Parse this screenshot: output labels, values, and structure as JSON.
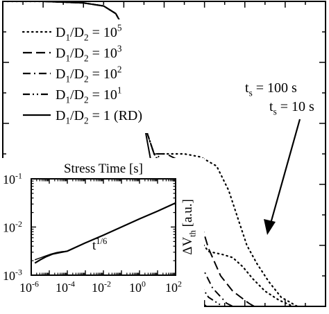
{
  "chart_data": [
    {
      "type": "line",
      "title": "",
      "xlabel": "",
      "ylabel": "",
      "xscale": "log",
      "yscale": "linear",
      "xlim": [
        -2,
        6
      ],
      "ylim": [
        0,
        1
      ],
      "grid": false,
      "legend": {
        "placement": "top-left",
        "entries": [
          {
            "ratio": "10",
            "exp": "5",
            "style": "dotted"
          },
          {
            "ratio": "10",
            "exp": "3",
            "style": "dashed"
          },
          {
            "ratio": "10",
            "exp": "2",
            "style": "dashdot"
          },
          {
            "ratio": "10",
            "exp": "1",
            "style": "dashdotdot"
          },
          {
            "ratio": "1 (RD)",
            "exp": "",
            "style": "solid"
          }
        ]
      },
      "series": [
        {
          "style": "solid",
          "x": [
            -2.0,
            -1.0,
            0.0,
            0.5,
            0.8,
            1.05,
            1.25,
            1.5,
            1.75,
            2.0,
            2.3,
            2.6,
            2.85,
            3.05,
            3.2,
            3.4
          ],
          "y": [
            1.0,
            1.0,
            0.995,
            0.985,
            0.96,
            0.9,
            0.8,
            0.6,
            0.42,
            0.29,
            0.18,
            0.08,
            0.02,
            0.0,
            -0.01,
            -0.02
          ]
        },
        {
          "style": "dashdotdot",
          "x": [
            -2.0,
            -1.0,
            0.0,
            0.5,
            0.8,
            1.05,
            1.25,
            1.5,
            1.75,
            1.9,
            2.05,
            2.3,
            2.55,
            2.8,
            3.1,
            3.45,
            3.8
          ],
          "y": [
            1.0,
            1.0,
            0.995,
            0.985,
            0.96,
            0.9,
            0.8,
            0.6,
            0.5,
            0.47,
            0.42,
            0.3,
            0.18,
            0.09,
            0.03,
            0.0,
            -0.02
          ]
        },
        {
          "style": "dashdot",
          "x": [
            -2.0,
            -1.0,
            0.0,
            0.5,
            0.8,
            1.05,
            1.25,
            1.5,
            1.75,
            2.0,
            2.2,
            2.4,
            2.65,
            2.9,
            3.2,
            3.55,
            4.0
          ],
          "y": [
            1.0,
            1.0,
            0.995,
            0.985,
            0.96,
            0.9,
            0.8,
            0.6,
            0.5,
            0.48,
            0.44,
            0.36,
            0.24,
            0.14,
            0.06,
            0.01,
            -0.02
          ]
        },
        {
          "style": "dashed",
          "x": [
            -2.0,
            -1.0,
            0.0,
            0.5,
            0.8,
            1.05,
            1.25,
            1.5,
            1.75,
            2.05,
            2.35,
            2.6,
            2.85,
            3.1,
            3.4,
            3.7,
            4.1,
            4.5
          ],
          "y": [
            1.0,
            1.0,
            0.995,
            0.985,
            0.96,
            0.9,
            0.8,
            0.6,
            0.5,
            0.5,
            0.48,
            0.42,
            0.3,
            0.19,
            0.1,
            0.05,
            0.01,
            -0.02
          ]
        },
        {
          "style": "dotted",
          "x": [
            -2.0,
            -1.0,
            0.0,
            0.5,
            0.8,
            1.05,
            1.25,
            1.5,
            1.75,
            2.1,
            2.5,
            2.9,
            3.3,
            3.6,
            3.85,
            4.05,
            4.3,
            4.6,
            4.9,
            5.3
          ],
          "y": [
            1.0,
            1.0,
            0.995,
            0.985,
            0.96,
            0.9,
            0.8,
            0.6,
            0.5,
            0.5,
            0.5,
            0.49,
            0.46,
            0.38,
            0.28,
            0.2,
            0.14,
            0.08,
            0.03,
            0.0
          ]
        },
        {
          "style": "dotted",
          "x": [
            1.75,
            2.2,
            2.7,
            3.1,
            3.45,
            3.7,
            3.95,
            4.2,
            4.5,
            4.85,
            5.2
          ],
          "y": [
            0.5,
            0.4,
            0.25,
            0.18,
            0.17,
            0.16,
            0.13,
            0.09,
            0.05,
            0.02,
            0.0
          ]
        }
      ],
      "annotations": [
        {
          "text": "t",
          "sub": "s",
          "rest": " = 100 s"
        },
        {
          "text": "t",
          "sub": "s",
          "rest": " = 10 s"
        }
      ]
    },
    {
      "type": "line",
      "title": "Stress Time  [s]",
      "xlabel": "Stress Time  [s]",
      "ylabel": "ΔV",
      "ylabel_sub": "th",
      "ylabel_rest": " [a.u.]",
      "xscale": "log",
      "yscale": "log",
      "xlim": [
        -6,
        2
      ],
      "ylim": [
        -3,
        -1
      ],
      "xticks": [
        -6,
        -4,
        -2,
        0,
        2
      ],
      "yticks": [
        -3,
        -2,
        -1
      ],
      "tick_base": "10",
      "x_tick_exps": [
        "-6",
        "-4",
        "-2",
        "0",
        "2"
      ],
      "y_tick_exps": [
        "-3",
        "-2",
        "-1"
      ],
      "grid": false,
      "annotation": {
        "text": "t",
        "sup": "1/6"
      },
      "series": [
        {
          "style": "solid",
          "x": [
            -5.8,
            -5.5,
            -5.2,
            -4.8,
            -4.4,
            -4.0,
            -3.0,
            -2.0,
            -1.0,
            0.0,
            1.0,
            2.0
          ],
          "y": [
            -2.75,
            -2.68,
            -2.62,
            -2.56,
            -2.53,
            -2.5,
            -2.33,
            -2.17,
            -2.0,
            -1.83,
            -1.67,
            -1.5
          ]
        },
        {
          "style": "solid",
          "x": [
            -5.8,
            -5.5,
            -5.2,
            -4.9,
            -4.6,
            -4.3,
            -4.0
          ],
          "y": [
            -2.68,
            -2.64,
            -2.6,
            -2.56,
            -2.53,
            -2.51,
            -2.5
          ]
        }
      ]
    }
  ]
}
